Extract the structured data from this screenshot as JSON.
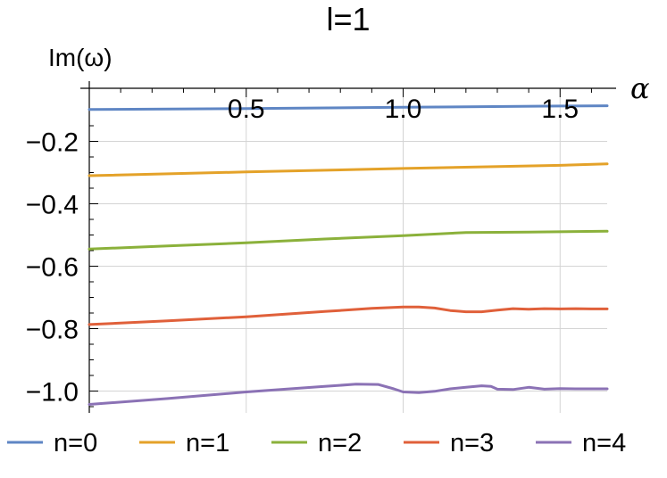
{
  "chart_data": {
    "type": "line",
    "title": "l=1",
    "xlabel": "α",
    "ylabel": "Im(ω)",
    "xlim": [
      0,
      1.65
    ],
    "ylim": [
      -1.07,
      -0.03
    ],
    "xticks": [
      0.5,
      1.0,
      1.5
    ],
    "xtick_labels": [
      "0.5",
      "1.0",
      "1.5"
    ],
    "yticks": [
      -0.2,
      -0.4,
      -0.6,
      -0.8,
      -1.0
    ],
    "ytick_labels": [
      "−0.2",
      "−0.4",
      "−0.6",
      "−0.8",
      "−1.0"
    ],
    "grid": true,
    "legend_position": "bottom",
    "series": [
      {
        "name": "n=0",
        "color": "#5f86c4",
        "x": [
          0,
          0.5,
          1.0,
          1.5,
          1.65
        ],
        "y": [
          -0.098,
          -0.095,
          -0.091,
          -0.087,
          -0.086
        ]
      },
      {
        "name": "n=1",
        "color": "#e4a229",
        "x": [
          0,
          0.5,
          1.0,
          1.5,
          1.65
        ],
        "y": [
          -0.31,
          -0.298,
          -0.287,
          -0.277,
          -0.272
        ]
      },
      {
        "name": "n=2",
        "color": "#8bb13b",
        "x": [
          0,
          0.25,
          0.5,
          0.75,
          1.0,
          1.2,
          1.4,
          1.65
        ],
        "y": [
          -0.545,
          -0.535,
          -0.525,
          -0.513,
          -0.502,
          -0.492,
          -0.491,
          -0.488
        ]
      },
      {
        "name": "n=3",
        "color": "#e0603a",
        "x": [
          0,
          0.25,
          0.5,
          0.75,
          0.9,
          1.0,
          1.05,
          1.1,
          1.15,
          1.2,
          1.25,
          1.3,
          1.35,
          1.4,
          1.45,
          1.5,
          1.55,
          1.6,
          1.65
        ],
        "y": [
          -0.787,
          -0.775,
          -0.762,
          -0.745,
          -0.735,
          -0.731,
          -0.731,
          -0.734,
          -0.742,
          -0.746,
          -0.746,
          -0.741,
          -0.736,
          -0.738,
          -0.736,
          -0.737,
          -0.736,
          -0.737,
          -0.737
        ]
      },
      {
        "name": "n=4",
        "color": "#8b72b5",
        "x": [
          0,
          0.25,
          0.5,
          0.75,
          0.85,
          0.92,
          0.97,
          1.0,
          1.05,
          1.1,
          1.15,
          1.2,
          1.25,
          1.28,
          1.3,
          1.35,
          1.4,
          1.45,
          1.5,
          1.55,
          1.6,
          1.65
        ],
        "y": [
          -1.043,
          -1.024,
          -1.003,
          -0.985,
          -0.978,
          -0.979,
          -0.993,
          -1.003,
          -1.005,
          -1.001,
          -0.993,
          -0.988,
          -0.983,
          -0.985,
          -0.994,
          -0.995,
          -0.988,
          -0.994,
          -0.992,
          -0.993,
          -0.993,
          -0.993
        ]
      }
    ]
  }
}
